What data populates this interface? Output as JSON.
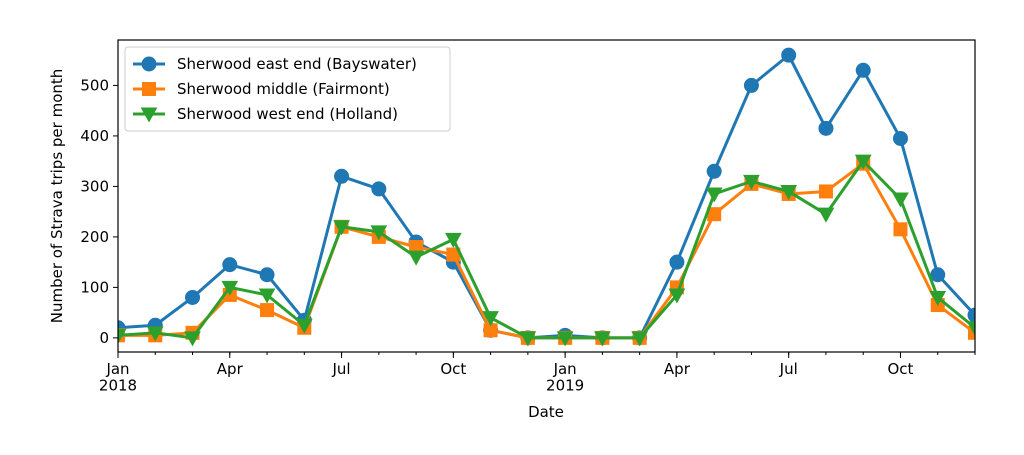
{
  "chart_data": {
    "type": "line",
    "x_label": "Date",
    "y_label": "Number of Strava trips per month",
    "x": [
      "2018-01",
      "2018-02",
      "2018-03",
      "2018-04",
      "2018-05",
      "2018-06",
      "2018-07",
      "2018-08",
      "2018-09",
      "2018-10",
      "2018-11",
      "2018-12",
      "2019-01",
      "2019-02",
      "2019-03",
      "2019-04",
      "2019-05",
      "2019-06",
      "2019-07",
      "2019-08",
      "2019-09",
      "2019-10",
      "2019-11",
      "2019-12"
    ],
    "xticks": [
      {
        "value": "2018-01",
        "label": "Jan\n2018"
      },
      {
        "value": "2018-04",
        "label": "Apr"
      },
      {
        "value": "2018-07",
        "label": "Jul"
      },
      {
        "value": "2018-10",
        "label": "Oct"
      },
      {
        "value": "2019-01",
        "label": "Jan\n2019"
      },
      {
        "value": "2019-04",
        "label": "Apr"
      },
      {
        "value": "2019-07",
        "label": "Jul"
      },
      {
        "value": "2019-10",
        "label": "Oct"
      }
    ],
    "ylim": [
      -28,
      590
    ],
    "yticks": [
      0,
      100,
      200,
      300,
      400,
      500
    ],
    "legend": "upper left",
    "series": [
      {
        "name": "Sherwood east end (Bayswater)",
        "color": "#1f77b4",
        "marker": "o",
        "values": [
          20,
          25,
          80,
          145,
          125,
          35,
          320,
          295,
          190,
          150,
          15,
          0,
          5,
          0,
          0,
          150,
          330,
          500,
          560,
          415,
          530,
          395,
          125,
          45
        ]
      },
      {
        "name": "Sherwood middle (Fairmont)",
        "color": "#ff7f0e",
        "marker": "s",
        "values": [
          5,
          5,
          10,
          85,
          55,
          20,
          220,
          200,
          180,
          165,
          15,
          0,
          0,
          0,
          0,
          100,
          245,
          305,
          285,
          290,
          345,
          215,
          65,
          10
        ]
      },
      {
        "name": "Sherwood west end (Holland)",
        "color": "#2ca02c",
        "marker": "v",
        "values": [
          5,
          10,
          0,
          100,
          85,
          25,
          220,
          210,
          160,
          195,
          40,
          0,
          0,
          0,
          0,
          85,
          285,
          310,
          290,
          245,
          350,
          275,
          80,
          20
        ]
      }
    ]
  }
}
